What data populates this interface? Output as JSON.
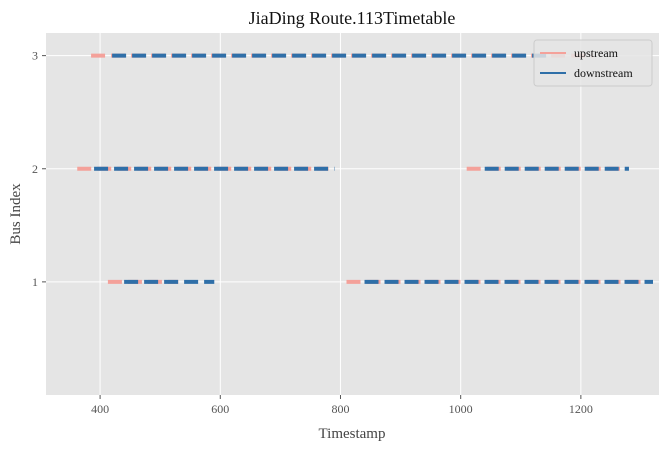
{
  "chart_data": {
    "type": "line",
    "title": "JiaDing Route.113Timetable",
    "xlabel": "Timestamp",
    "ylabel": "Bus Index",
    "xlim": [
      310,
      1330
    ],
    "ylim": [
      0,
      3.2
    ],
    "x_ticks": [
      400,
      600,
      800,
      1000,
      1200
    ],
    "y_ticks": [
      1,
      2,
      3
    ],
    "grid": true,
    "legend_position": "top-right",
    "series": [
      {
        "name": "upstream",
        "color": "#f4a19a",
        "style": "dashed",
        "segments": [
          {
            "y": 1,
            "x": [
              413,
              530
            ]
          },
          {
            "y": 1,
            "x": [
              810,
              1305
            ]
          },
          {
            "y": 2,
            "x": [
              362,
              780
            ]
          },
          {
            "y": 2,
            "x": [
              1010,
              1265
            ]
          },
          {
            "y": 3,
            "x": [
              385,
              1220
            ]
          }
        ]
      },
      {
        "name": "downstream",
        "color": "#2f6fa8",
        "style": "dashed",
        "segments": [
          {
            "y": 1,
            "x": [
              440,
              590
            ]
          },
          {
            "y": 1,
            "x": [
              840,
              1320
            ]
          },
          {
            "y": 2,
            "x": [
              390,
              790
            ]
          },
          {
            "y": 2,
            "x": [
              1040,
              1280
            ]
          },
          {
            "y": 3,
            "x": [
              420,
              1150
            ]
          }
        ]
      }
    ]
  }
}
